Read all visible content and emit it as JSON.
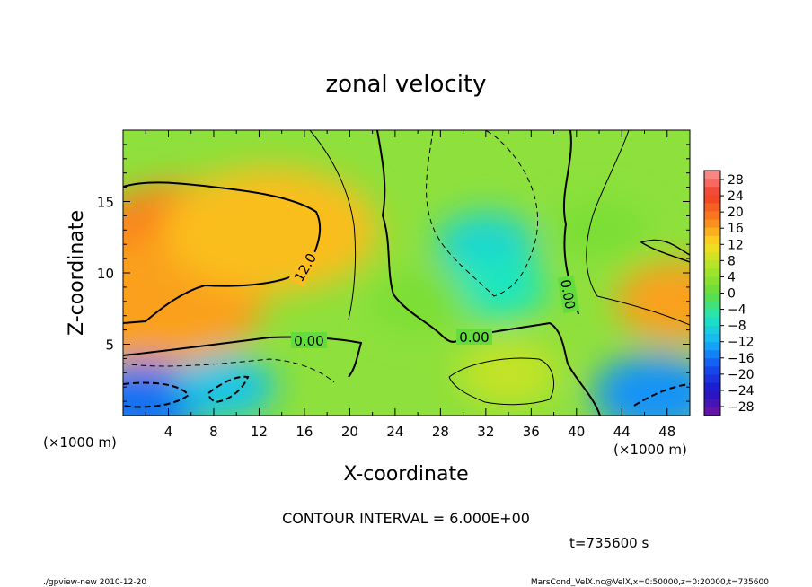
{
  "chart_data": {
    "type": "heatmap",
    "title": "zonal velocity",
    "xlabel": "X-coordinate",
    "ylabel": "Z-coordinate",
    "x_unit": "(×1000 m)",
    "y_unit": "(×1000 m)",
    "xlim": [
      0,
      50
    ],
    "ylim": [
      0,
      20
    ],
    "x_ticks": [
      "4",
      "8",
      "12",
      "16",
      "20",
      "24",
      "28",
      "32",
      "36",
      "40",
      "44",
      "48"
    ],
    "y_ticks": [
      "5",
      "10",
      "15"
    ],
    "colorbar": {
      "range": [
        -30,
        30
      ],
      "labels": [
        "28",
        "24",
        "20",
        "16",
        "12",
        "8",
        "4",
        "0",
        "−4",
        "−8",
        "−12",
        "−16",
        "−20",
        "−24",
        "−28"
      ]
    },
    "contour_labels": [
      "12.0",
      "0.00",
      "0.00",
      "0.00"
    ],
    "contour_interval": "CONTOUR INTERVAL = 6.000E+00",
    "time": "t=735600 s",
    "regions": [
      {
        "x": 6,
        "z": 12,
        "value": 18
      },
      {
        "x": 3,
        "z": 8,
        "value": 16
      },
      {
        "x": 13,
        "z": 13,
        "value": 14
      },
      {
        "x": 32,
        "z": 12,
        "value": -8
      },
      {
        "x": 33,
        "z": 9,
        "value": -6
      },
      {
        "x": 2,
        "z": 1,
        "value": -16
      },
      {
        "x": 9,
        "z": 2,
        "value": -10
      },
      {
        "x": 47,
        "z": 1.5,
        "value": -14
      },
      {
        "x": 49,
        "z": 8,
        "value": 16
      },
      {
        "x": 34,
        "z": 3,
        "value": 8
      },
      {
        "x": 26,
        "z": 8,
        "value": 2
      },
      {
        "x": 42,
        "z": 13,
        "value": 2
      }
    ]
  },
  "footer": {
    "left": "./gpview-new   2010-12-20",
    "right": "MarsCond_VelX.nc@VelX,x=0:50000,z=0:20000,t=735600"
  },
  "colors": {
    "positive": "#ff8c00",
    "negative": "#1e64ff",
    "zero": "#80e040"
  }
}
